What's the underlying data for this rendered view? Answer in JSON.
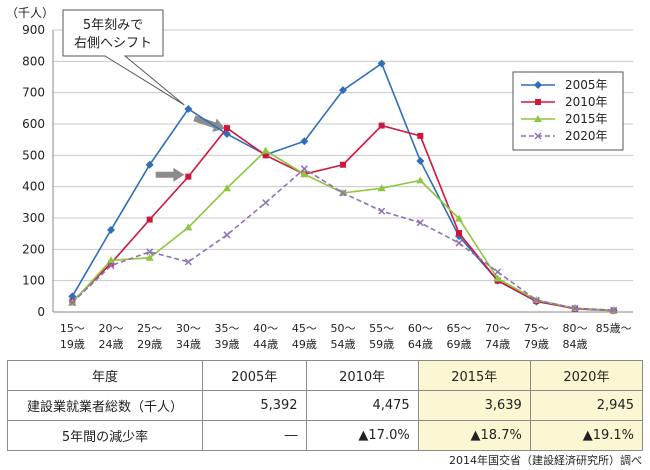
{
  "chart_data": {
    "type": "line",
    "y_unit_label": "（千人）",
    "ylim": [
      0,
      900
    ],
    "y_ticks": [
      0,
      100,
      200,
      300,
      400,
      500,
      600,
      700,
      800,
      900
    ],
    "categories": [
      [
        "15～",
        "19歳"
      ],
      [
        "20～",
        "24歳"
      ],
      [
        "25～",
        "29歳"
      ],
      [
        "30～",
        "34歳"
      ],
      [
        "35～",
        "39歳"
      ],
      [
        "40～",
        "44歳"
      ],
      [
        "45～",
        "49歳"
      ],
      [
        "50～",
        "54歳"
      ],
      [
        "55～",
        "59歳"
      ],
      [
        "60～",
        "64歳"
      ],
      [
        "65～",
        "69歳"
      ],
      [
        "70～",
        "74歳"
      ],
      [
        "75～",
        "79歳"
      ],
      [
        "80～",
        "84歳"
      ],
      [
        "85歳～",
        ""
      ]
    ],
    "series": [
      {
        "name": "2005年",
        "color": "#2e6fb7",
        "dash": false,
        "marker": "diamond",
        "values": [
          50,
          262,
          470,
          648,
          568,
          502,
          545,
          708,
          793,
          482,
          242,
          100,
          33,
          12,
          5
        ]
      },
      {
        "name": "2010年",
        "color": "#d1163d",
        "dash": false,
        "marker": "square",
        "values": [
          33,
          155,
          295,
          432,
          587,
          500,
          440,
          470,
          595,
          562,
          252,
          100,
          35,
          10,
          4
        ]
      },
      {
        "name": "2015年",
        "color": "#8dc63f",
        "dash": false,
        "marker": "triangle",
        "values": [
          30,
          165,
          173,
          270,
          395,
          515,
          440,
          380,
          395,
          420,
          298,
          107,
          38,
          12,
          5
        ]
      },
      {
        "name": "2020年",
        "color": "#9070b6",
        "dash": true,
        "marker": "x",
        "values": [
          30,
          148,
          192,
          160,
          246,
          349,
          457,
          380,
          322,
          285,
          220,
          128,
          38,
          12,
          6
        ]
      }
    ],
    "annotation": [
      "5年刻みで",
      "右側へシフト"
    ]
  },
  "table": {
    "header": [
      "年度",
      "2005年",
      "2010年",
      "2015年",
      "2020年"
    ],
    "rows": [
      {
        "label": "建設業就業者総数（千人）",
        "values": [
          "5,392",
          "4,475",
          "3,639",
          "2,945"
        ]
      },
      {
        "label": "5年間の減少率",
        "values": [
          "―",
          "▲17.0%",
          "▲18.7%",
          "▲19.1%"
        ]
      }
    ]
  },
  "source": "2014年国交省（建設経済研究所）調べ"
}
